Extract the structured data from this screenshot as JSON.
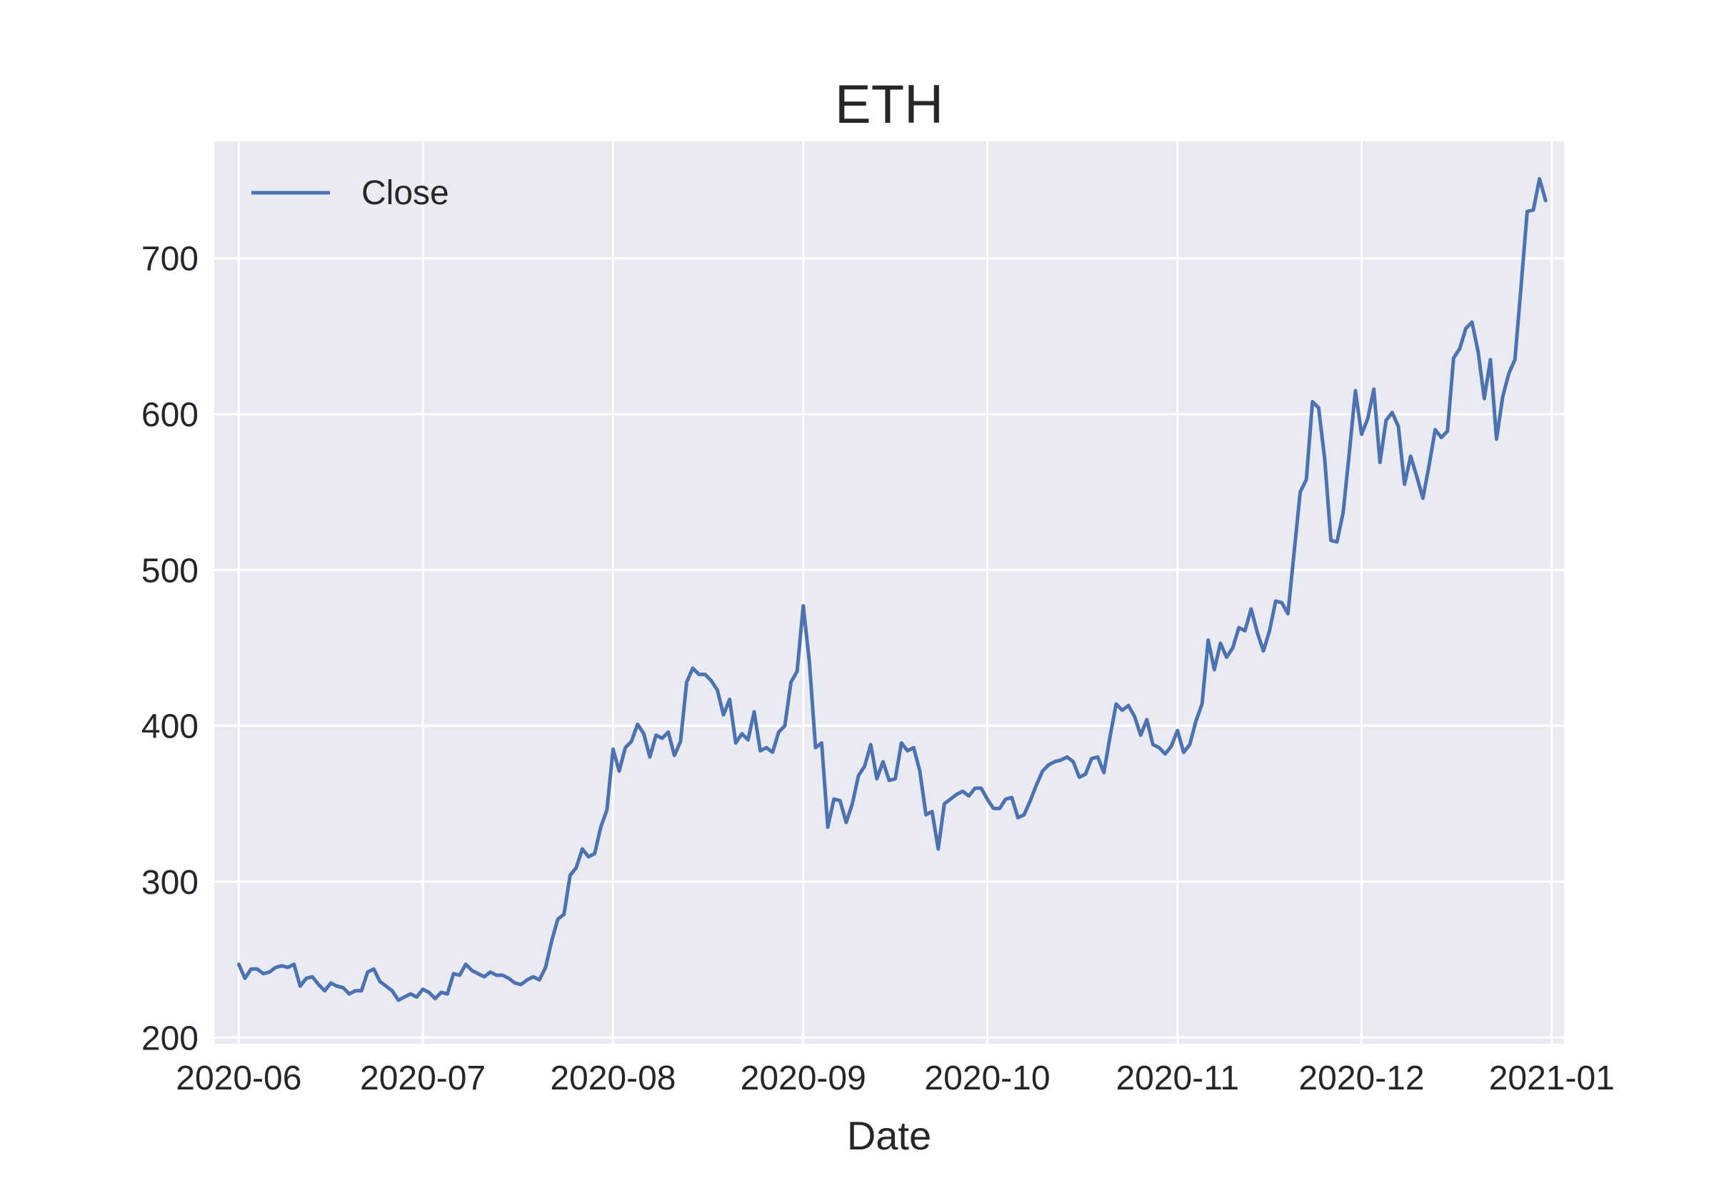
{
  "chart_data": {
    "type": "line",
    "title": "ETH",
    "xlabel": "Date",
    "ylabel": "",
    "x_axis": "date",
    "xlim": [
      "2020-05-28",
      "2021-01-03"
    ],
    "ylim": [
      196,
      775
    ],
    "x_ticks": [
      "2020-06-01",
      "2020-07-01",
      "2020-08-01",
      "2020-09-01",
      "2020-10-01",
      "2020-11-01",
      "2020-12-01",
      "2021-01-01"
    ],
    "x_tick_labels": [
      "2020-06",
      "2020-07",
      "2020-08",
      "2020-09",
      "2020-10",
      "2020-11",
      "2020-12",
      "2021-01"
    ],
    "y_ticks": [
      200,
      300,
      400,
      500,
      600,
      700
    ],
    "y_tick_labels": [
      "200",
      "300",
      "400",
      "500",
      "600",
      "700"
    ],
    "grid": true,
    "legend": "upper-left",
    "style": {
      "background": "#eaeaf2",
      "grid": "#ffffff",
      "line": "#4c72b0"
    },
    "series": [
      {
        "name": "Close",
        "x": [
          "2020-06-01",
          "2020-06-02",
          "2020-06-03",
          "2020-06-04",
          "2020-06-05",
          "2020-06-06",
          "2020-06-07",
          "2020-06-08",
          "2020-06-09",
          "2020-06-10",
          "2020-06-11",
          "2020-06-12",
          "2020-06-13",
          "2020-06-14",
          "2020-06-15",
          "2020-06-16",
          "2020-06-17",
          "2020-06-18",
          "2020-06-19",
          "2020-06-20",
          "2020-06-21",
          "2020-06-22",
          "2020-06-23",
          "2020-06-24",
          "2020-06-25",
          "2020-06-26",
          "2020-06-27",
          "2020-06-28",
          "2020-06-29",
          "2020-06-30",
          "2020-07-01",
          "2020-07-02",
          "2020-07-03",
          "2020-07-04",
          "2020-07-05",
          "2020-07-06",
          "2020-07-07",
          "2020-07-08",
          "2020-07-09",
          "2020-07-10",
          "2020-07-11",
          "2020-07-12",
          "2020-07-13",
          "2020-07-14",
          "2020-07-15",
          "2020-07-16",
          "2020-07-17",
          "2020-07-18",
          "2020-07-19",
          "2020-07-20",
          "2020-07-21",
          "2020-07-22",
          "2020-07-23",
          "2020-07-24",
          "2020-07-25",
          "2020-07-26",
          "2020-07-27",
          "2020-07-28",
          "2020-07-29",
          "2020-07-30",
          "2020-07-31",
          "2020-08-01",
          "2020-08-02",
          "2020-08-03",
          "2020-08-04",
          "2020-08-05",
          "2020-08-06",
          "2020-08-07",
          "2020-08-08",
          "2020-08-09",
          "2020-08-10",
          "2020-08-11",
          "2020-08-12",
          "2020-08-13",
          "2020-08-14",
          "2020-08-15",
          "2020-08-16",
          "2020-08-17",
          "2020-08-18",
          "2020-08-19",
          "2020-08-20",
          "2020-08-21",
          "2020-08-22",
          "2020-08-23",
          "2020-08-24",
          "2020-08-25",
          "2020-08-26",
          "2020-08-27",
          "2020-08-28",
          "2020-08-29",
          "2020-08-30",
          "2020-08-31",
          "2020-09-01",
          "2020-09-02",
          "2020-09-03",
          "2020-09-04",
          "2020-09-05",
          "2020-09-06",
          "2020-09-07",
          "2020-09-08",
          "2020-09-09",
          "2020-09-10",
          "2020-09-11",
          "2020-09-12",
          "2020-09-13",
          "2020-09-14",
          "2020-09-15",
          "2020-09-16",
          "2020-09-17",
          "2020-09-18",
          "2020-09-19",
          "2020-09-20",
          "2020-09-21",
          "2020-09-22",
          "2020-09-23",
          "2020-09-24",
          "2020-09-25",
          "2020-09-26",
          "2020-09-27",
          "2020-09-28",
          "2020-09-29",
          "2020-09-30",
          "2020-10-01",
          "2020-10-02",
          "2020-10-03",
          "2020-10-04",
          "2020-10-05",
          "2020-10-06",
          "2020-10-07",
          "2020-10-08",
          "2020-10-09",
          "2020-10-10",
          "2020-10-11",
          "2020-10-12",
          "2020-10-13",
          "2020-10-14",
          "2020-10-15",
          "2020-10-16",
          "2020-10-17",
          "2020-10-18",
          "2020-10-19",
          "2020-10-20",
          "2020-10-21",
          "2020-10-22",
          "2020-10-23",
          "2020-10-24",
          "2020-10-25",
          "2020-10-26",
          "2020-10-27",
          "2020-10-28",
          "2020-10-29",
          "2020-10-30",
          "2020-10-31",
          "2020-11-01",
          "2020-11-02",
          "2020-11-03",
          "2020-11-04",
          "2020-11-05",
          "2020-11-06",
          "2020-11-07",
          "2020-11-08",
          "2020-11-09",
          "2020-11-10",
          "2020-11-11",
          "2020-11-12",
          "2020-11-13",
          "2020-11-14",
          "2020-11-15",
          "2020-11-16",
          "2020-11-17",
          "2020-11-18",
          "2020-11-19",
          "2020-11-20",
          "2020-11-21",
          "2020-11-22",
          "2020-11-23",
          "2020-11-24",
          "2020-11-25",
          "2020-11-26",
          "2020-11-27",
          "2020-11-28",
          "2020-11-29",
          "2020-11-30",
          "2020-12-01",
          "2020-12-02",
          "2020-12-03",
          "2020-12-04",
          "2020-12-05",
          "2020-12-06",
          "2020-12-07",
          "2020-12-08",
          "2020-12-09",
          "2020-12-10",
          "2020-12-11",
          "2020-12-12",
          "2020-12-13",
          "2020-12-14",
          "2020-12-15",
          "2020-12-16",
          "2020-12-17",
          "2020-12-18",
          "2020-12-19",
          "2020-12-20",
          "2020-12-21",
          "2020-12-22",
          "2020-12-23",
          "2020-12-24",
          "2020-12-25",
          "2020-12-26",
          "2020-12-27",
          "2020-12-28",
          "2020-12-29",
          "2020-12-30",
          "2020-12-31"
        ],
        "values": [
          247,
          238,
          244,
          244,
          241,
          242,
          245,
          246,
          245,
          247,
          233,
          238,
          239,
          234,
          230,
          235,
          233,
          232,
          228,
          230,
          230,
          242,
          244,
          236,
          233,
          230,
          224,
          226,
          228,
          226,
          231,
          229,
          225,
          229,
          228,
          241,
          240,
          247,
          243,
          241,
          239,
          242,
          240,
          240,
          238,
          235,
          234,
          237,
          239,
          237,
          245,
          262,
          276,
          279,
          304,
          309,
          321,
          316,
          318,
          335,
          346,
          385,
          371,
          386,
          390,
          401,
          395,
          380,
          394,
          392,
          396,
          381,
          390,
          428,
          437,
          433,
          433,
          429,
          423,
          407,
          417,
          389,
          395,
          391,
          409,
          384,
          386,
          383,
          396,
          400,
          428,
          435,
          477,
          441,
          386,
          389,
          335,
          353,
          352,
          338,
          350,
          368,
          374,
          388,
          366,
          377,
          365,
          366,
          389,
          384,
          386,
          371,
          343,
          345,
          321,
          350,
          353,
          356,
          358,
          355,
          360,
          360,
          353,
          347,
          347,
          353,
          354,
          341,
          343,
          352,
          362,
          371,
          375,
          377,
          378,
          380,
          377,
          367,
          369,
          379,
          380,
          370,
          393,
          414,
          410,
          413,
          406,
          394,
          404,
          388,
          386,
          382,
          387,
          397,
          383,
          388,
          403,
          414,
          455,
          436,
          453,
          444,
          450,
          463,
          461,
          475,
          460,
          448,
          461,
          480,
          479,
          472,
          511,
          550,
          558,
          608,
          604,
          571,
          519,
          518,
          537,
          575,
          615,
          587,
          597,
          616,
          569,
          596,
          601,
          592,
          555,
          573,
          560,
          546,
          567,
          590,
          585,
          589,
          636,
          642,
          655,
          659,
          640,
          610,
          635,
          584,
          611,
          626,
          635,
          682,
          730,
          731,
          751,
          737
        ]
      }
    ]
  }
}
